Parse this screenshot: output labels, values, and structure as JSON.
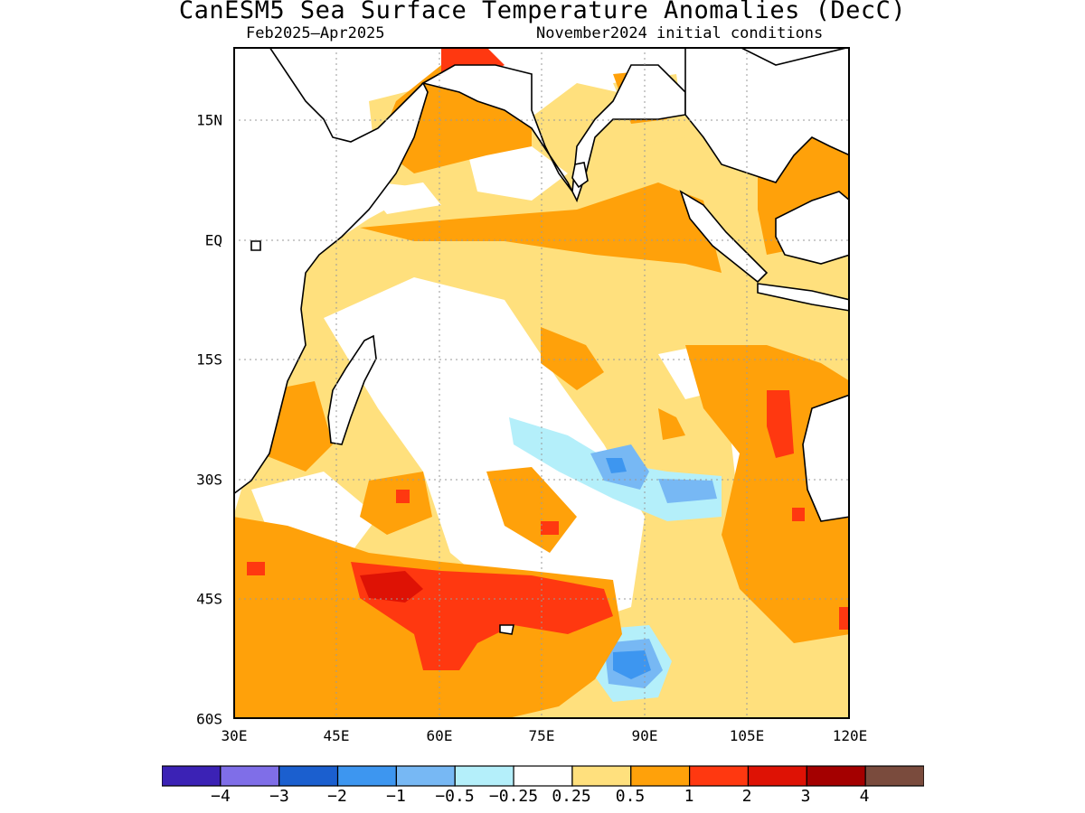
{
  "title": "CanESM5 Sea Surface Temperature Anomalies (DecC)",
  "subtitle_left": "Feb2025–Apr2025",
  "subtitle_right": "November2024 initial conditions",
  "map": {
    "region": "Indian Ocean",
    "lon_range": [
      30,
      120
    ],
    "lat_range": [
      -60,
      24
    ],
    "lat_ticks": [
      "15N",
      "EQ",
      "15S",
      "30S",
      "45S",
      "60S"
    ],
    "lon_ticks": [
      "30E",
      "45E",
      "60E",
      "75E",
      "90E",
      "105E",
      "120E"
    ],
    "grid": "dotted",
    "land_color": "#ffffff"
  },
  "colorbar": {
    "colors": [
      "#3b22b5",
      "#7f6ee8",
      "#1b5fcf",
      "#3d96f0",
      "#77b8f4",
      "#b4effa",
      "#ffffff",
      "#ffe07d",
      "#ffa10a",
      "#ff3810",
      "#de1205",
      "#a40000",
      "#7a4b3d"
    ],
    "labels": [
      "−4",
      "−3",
      "−2",
      "−1",
      "−0.5",
      "−0.25",
      "0.25",
      "0.5",
      "1",
      "2",
      "3",
      "4"
    ]
  }
}
